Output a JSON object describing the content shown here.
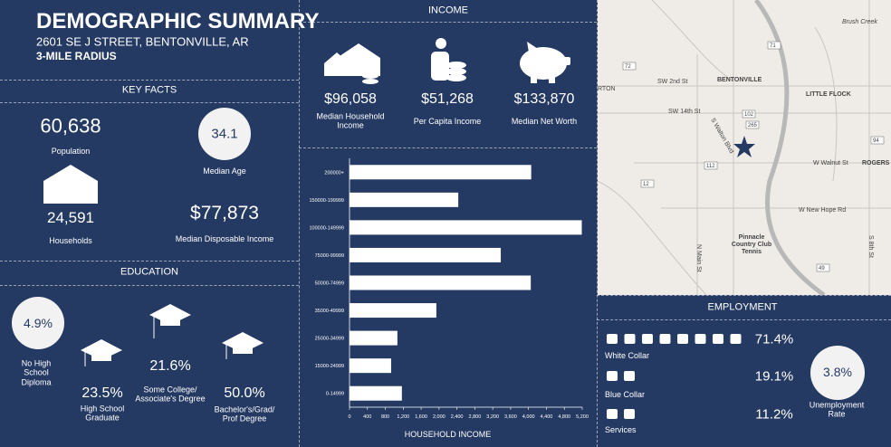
{
  "header": {
    "title": "DEMOGRAPHIC SUMMARY",
    "address": "2601 SE J STREET, BENTONVILLE, AR",
    "radius": "3-MILE RADIUS"
  },
  "key_facts": {
    "heading": "KEY FACTS",
    "population": {
      "value": "60,638",
      "label": "Population"
    },
    "median_age": {
      "value": "34.1",
      "label": "Median Age"
    },
    "households": {
      "value": "24,591",
      "label": "Households"
    },
    "median_disposable_income": {
      "value": "$77,873",
      "label": "Median Disposable Income"
    }
  },
  "education": {
    "heading": "EDUCATION",
    "items": [
      {
        "value": "4.9%",
        "label": "No High School Diploma"
      },
      {
        "value": "23.5%",
        "label": "High School Graduate"
      },
      {
        "value": "21.6%",
        "label": "Some College/ Associate's Degree"
      },
      {
        "value": "50.0%",
        "label": "Bachelor's/Grad/ Prof Degree"
      }
    ]
  },
  "income": {
    "heading": "INCOME",
    "items": [
      {
        "value": "$96,058",
        "label": "Median Household Income"
      },
      {
        "value": "$51,268",
        "label": "Per Capita Income"
      },
      {
        "value": "$133,870",
        "label": "Median Net Worth"
      }
    ]
  },
  "chart_data": {
    "type": "hbar",
    "x_label": "HOUSEHOLD INCOME",
    "color": "#ffffff",
    "categories": [
      "200000+",
      "150000-199999",
      "100000-149999",
      "75000-99999",
      "50000-74999",
      "35000-49999",
      "25000-34999",
      "15000-24999",
      "0-14999"
    ],
    "values": [
      4060,
      2430,
      5190,
      3380,
      4050,
      1940,
      1070,
      930,
      1170
    ],
    "xlim": [
      0,
      5200
    ],
    "xticks": [
      0,
      400,
      800,
      {
        "value": 1200,
        "label": "1,200"
      },
      {
        "value": 1600,
        "label": "1,600"
      },
      {
        "value": 2000,
        "label": "2,000"
      },
      {
        "value": 2400,
        "label": "2,400"
      },
      {
        "value": 2800,
        "label": "2,800"
      },
      {
        "value": 3200,
        "label": "3,200"
      },
      {
        "value": 3600,
        "label": "3,600"
      },
      {
        "value": 4000,
        "label": "4,000"
      },
      {
        "value": 4400,
        "label": "4,400"
      },
      {
        "value": 4800,
        "label": "4,800"
      },
      {
        "value": 5200,
        "label": "5,200"
      }
    ]
  },
  "map": {
    "labels": [
      "Brush Creek",
      "RTON",
      "SW 2nd St",
      "BENTONVILLE",
      "LITTLE FLOCK",
      "SW 14th St",
      "S Walton Blvd",
      "W Walnut St",
      "ROGERS",
      "W New Hope Rd",
      "Pinnacle Country Club Tennis",
      "N Main St",
      "S 8th St",
      "71",
      "72",
      "102",
      "265",
      "112",
      "12",
      "94",
      "49"
    ]
  },
  "employment": {
    "heading": "EMPLOYMENT",
    "items": [
      {
        "value": "71.4%",
        "label": "White Collar"
      },
      {
        "value": "19.1%",
        "label": "Blue Collar"
      },
      {
        "value": "11.2%",
        "label": "Services"
      }
    ],
    "unemployment": {
      "value": "3.8%",
      "label": "Unemployment Rate"
    }
  }
}
